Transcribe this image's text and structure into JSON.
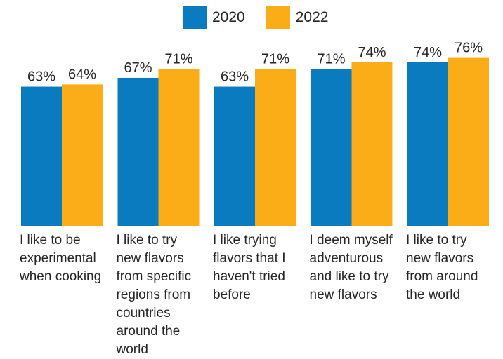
{
  "chart_data": {
    "type": "bar",
    "categories": [
      "I like to be experimental when cooking",
      "I like to try new flavors from specific regions from countries around the world",
      "I like trying flavors that I haven't tried before",
      "I deem myself adventurous and like to try new flavors",
      "I like to try new flavors from around the world"
    ],
    "category_lines": [
      [
        "I like to be",
        "experimental",
        "when cooking"
      ],
      [
        "I like to try",
        "new flavors",
        "from specific",
        "regions from",
        "countries",
        "around the",
        "world"
      ],
      [
        "I like trying",
        "flavors that I",
        "haven't tried",
        "before"
      ],
      [
        "I deem myself",
        "adventurous",
        "and like to try",
        "new flavors"
      ],
      [
        "I like to try",
        "new flavors",
        "from around",
        "the world"
      ]
    ],
    "series": [
      {
        "name": "2020",
        "values": [
          63,
          67,
          63,
          71,
          74
        ],
        "labels": [
          "63%",
          "67%",
          "63%",
          "71%",
          "74%"
        ],
        "color": "#0a7bbf"
      },
      {
        "name": "2022",
        "values": [
          64,
          71,
          71,
          74,
          76
        ],
        "labels": [
          "64%",
          "71%",
          "71%",
          "74%",
          "76%"
        ],
        "color": "#fbad18"
      }
    ],
    "ylim": [
      0,
      100
    ],
    "legend": "top-center",
    "grid": false,
    "title": "",
    "xlabel": "",
    "ylabel": ""
  }
}
